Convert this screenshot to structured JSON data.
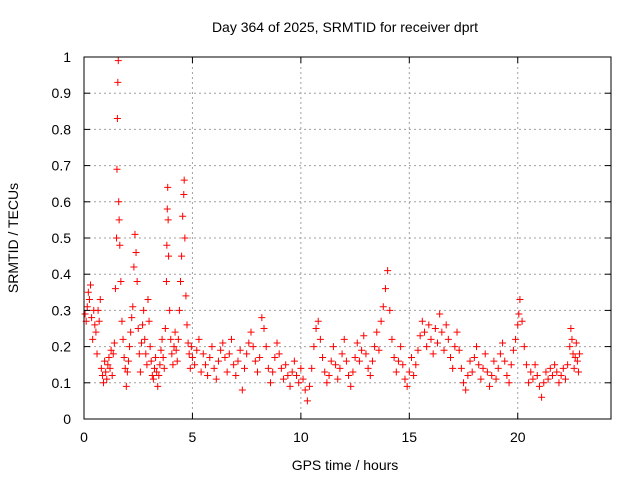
{
  "chart_data": {
    "type": "scatter",
    "title": "Day 364 of 2025, SRMTID for receiver dprt",
    "xlabel": "GPS time / hours",
    "ylabel": "SRMTID / TECUs",
    "xlim": [
      0,
      24.3
    ],
    "ylim": [
      0,
      1
    ],
    "xticks": [
      0,
      5,
      10,
      15,
      20
    ],
    "xtick_labels": [
      "0",
      "5",
      "10",
      "15",
      "20"
    ],
    "yticks": [
      0,
      0.1,
      0.2,
      0.3,
      0.4,
      0.5,
      0.6,
      0.7,
      0.8,
      0.9,
      1
    ],
    "ytick_labels": [
      "0",
      "0.1",
      "0.2",
      "0.3",
      "0.4",
      "0.5",
      "0.6",
      "0.7",
      "0.8",
      "0.9",
      "1"
    ],
    "grid": true,
    "marker": "+",
    "color": "#ff0000",
    "series": [
      {
        "name": "SRMTID",
        "points": [
          [
            0.05,
            0.29
          ],
          [
            0.1,
            0.27
          ],
          [
            0.15,
            0.31
          ],
          [
            0.2,
            0.35
          ],
          [
            0.25,
            0.33
          ],
          [
            0.3,
            0.37
          ],
          [
            0.35,
            0.28
          ],
          [
            0.4,
            0.22
          ],
          [
            0.45,
            0.3
          ],
          [
            0.5,
            0.26
          ],
          [
            0.55,
            0.24
          ],
          [
            0.6,
            0.18
          ],
          [
            0.65,
            0.3
          ],
          [
            0.7,
            0.27
          ],
          [
            0.75,
            0.33
          ],
          [
            0.8,
            0.14
          ],
          [
            0.85,
            0.12
          ],
          [
            0.9,
            0.1
          ],
          [
            0.95,
            0.16
          ],
          [
            1.0,
            0.13
          ],
          [
            1.05,
            0.11
          ],
          [
            1.1,
            0.15
          ],
          [
            1.15,
            0.17
          ],
          [
            1.2,
            0.14
          ],
          [
            1.25,
            0.19
          ],
          [
            1.3,
            0.12
          ],
          [
            1.35,
            0.18
          ],
          [
            1.4,
            0.21
          ],
          [
            1.45,
            0.36
          ],
          [
            1.5,
            0.5
          ],
          [
            1.52,
            0.69
          ],
          [
            1.54,
            0.83
          ],
          [
            1.56,
            0.93
          ],
          [
            1.58,
            0.99
          ],
          [
            1.6,
            0.6
          ],
          [
            1.62,
            0.55
          ],
          [
            1.65,
            0.48
          ],
          [
            1.7,
            0.38
          ],
          [
            1.75,
            0.27
          ],
          [
            1.8,
            0.22
          ],
          [
            1.85,
            0.17
          ],
          [
            1.9,
            0.14
          ],
          [
            1.95,
            0.09
          ],
          [
            2.0,
            0.13
          ],
          [
            2.05,
            0.16
          ],
          [
            2.1,
            0.2
          ],
          [
            2.15,
            0.24
          ],
          [
            2.2,
            0.28
          ],
          [
            2.25,
            0.31
          ],
          [
            2.3,
            0.42
          ],
          [
            2.35,
            0.51
          ],
          [
            2.4,
            0.46
          ],
          [
            2.45,
            0.38
          ],
          [
            2.5,
            0.25
          ],
          [
            2.55,
            0.18
          ],
          [
            2.6,
            0.13
          ],
          [
            2.65,
            0.21
          ],
          [
            2.7,
            0.26
          ],
          [
            2.75,
            0.3
          ],
          [
            2.8,
            0.22
          ],
          [
            2.85,
            0.18
          ],
          [
            2.9,
            0.15
          ],
          [
            2.95,
            0.33
          ],
          [
            3.0,
            0.27
          ],
          [
            3.05,
            0.2
          ],
          [
            3.1,
            0.16
          ],
          [
            3.15,
            0.12
          ],
          [
            3.2,
            0.11
          ],
          [
            3.25,
            0.14
          ],
          [
            3.3,
            0.17
          ],
          [
            3.35,
            0.13
          ],
          [
            3.4,
            0.09
          ],
          [
            3.45,
            0.12
          ],
          [
            3.5,
            0.15
          ],
          [
            3.55,
            0.19
          ],
          [
            3.6,
            0.22
          ],
          [
            3.65,
            0.17
          ],
          [
            3.7,
            0.14
          ],
          [
            3.75,
            0.25
          ],
          [
            3.8,
            0.38
          ],
          [
            3.82,
            0.48
          ],
          [
            3.84,
            0.58
          ],
          [
            3.86,
            0.64
          ],
          [
            3.88,
            0.55
          ],
          [
            3.9,
            0.45
          ],
          [
            3.95,
            0.3
          ],
          [
            4.0,
            0.22
          ],
          [
            4.05,
            0.18
          ],
          [
            4.1,
            0.15
          ],
          [
            4.15,
            0.2
          ],
          [
            4.2,
            0.24
          ],
          [
            4.25,
            0.19
          ],
          [
            4.3,
            0.16
          ],
          [
            4.35,
            0.22
          ],
          [
            4.4,
            0.3
          ],
          [
            4.45,
            0.38
          ],
          [
            4.5,
            0.45
          ],
          [
            4.55,
            0.56
          ],
          [
            4.6,
            0.62
          ],
          [
            4.62,
            0.66
          ],
          [
            4.65,
            0.5
          ],
          [
            4.7,
            0.34
          ],
          [
            4.75,
            0.26
          ],
          [
            4.8,
            0.21
          ],
          [
            4.85,
            0.18
          ],
          [
            4.9,
            0.14
          ],
          [
            4.95,
            0.2
          ],
          [
            5.0,
            0.17
          ],
          [
            5.1,
            0.15
          ],
          [
            5.2,
            0.19
          ],
          [
            5.3,
            0.22
          ],
          [
            5.4,
            0.13
          ],
          [
            5.5,
            0.18
          ],
          [
            5.6,
            0.15
          ],
          [
            5.7,
            0.12
          ],
          [
            5.8,
            0.17
          ],
          [
            5.9,
            0.2
          ],
          [
            6.0,
            0.14
          ],
          [
            6.1,
            0.11
          ],
          [
            6.2,
            0.16
          ],
          [
            6.3,
            0.19
          ],
          [
            6.4,
            0.21
          ],
          [
            6.5,
            0.17
          ],
          [
            6.6,
            0.13
          ],
          [
            6.7,
            0.18
          ],
          [
            6.8,
            0.22
          ],
          [
            6.9,
            0.15
          ],
          [
            7.0,
            0.12
          ],
          [
            7.1,
            0.16
          ],
          [
            7.2,
            0.19
          ],
          [
            7.3,
            0.08
          ],
          [
            7.4,
            0.14
          ],
          [
            7.5,
            0.18
          ],
          [
            7.6,
            0.21
          ],
          [
            7.7,
            0.24
          ],
          [
            7.8,
            0.2
          ],
          [
            7.9,
            0.16
          ],
          [
            8.0,
            0.13
          ],
          [
            8.1,
            0.17
          ],
          [
            8.2,
            0.28
          ],
          [
            8.3,
            0.25
          ],
          [
            8.4,
            0.2
          ],
          [
            8.5,
            0.14
          ],
          [
            8.6,
            0.1
          ],
          [
            8.7,
            0.13
          ],
          [
            8.8,
            0.17
          ],
          [
            8.9,
            0.21
          ],
          [
            9.0,
            0.18
          ],
          [
            9.1,
            0.14
          ],
          [
            9.2,
            0.11
          ],
          [
            9.3,
            0.15
          ],
          [
            9.4,
            0.12
          ],
          [
            9.5,
            0.09
          ],
          [
            9.6,
            0.13
          ],
          [
            9.7,
            0.16
          ],
          [
            9.8,
            0.12
          ],
          [
            9.9,
            0.1
          ],
          [
            10.0,
            0.14
          ],
          [
            10.1,
            0.11
          ],
          [
            10.2,
            0.08
          ],
          [
            10.3,
            0.05
          ],
          [
            10.4,
            0.09
          ],
          [
            10.5,
            0.14
          ],
          [
            10.6,
            0.2
          ],
          [
            10.7,
            0.25
          ],
          [
            10.8,
            0.27
          ],
          [
            10.9,
            0.22
          ],
          [
            11.0,
            0.17
          ],
          [
            11.1,
            0.13
          ],
          [
            11.2,
            0.1
          ],
          [
            11.3,
            0.12
          ],
          [
            11.4,
            0.16
          ],
          [
            11.5,
            0.2
          ],
          [
            11.6,
            0.15
          ],
          [
            11.7,
            0.11
          ],
          [
            11.8,
            0.14
          ],
          [
            11.9,
            0.18
          ],
          [
            12.0,
            0.22
          ],
          [
            12.1,
            0.16
          ],
          [
            12.2,
            0.12
          ],
          [
            12.3,
            0.09
          ],
          [
            12.4,
            0.13
          ],
          [
            12.5,
            0.17
          ],
          [
            12.6,
            0.21
          ],
          [
            12.7,
            0.16
          ],
          [
            12.8,
            0.19
          ],
          [
            12.9,
            0.23
          ],
          [
            13.0,
            0.18
          ],
          [
            13.1,
            0.14
          ],
          [
            13.2,
            0.12
          ],
          [
            13.3,
            0.16
          ],
          [
            13.4,
            0.2
          ],
          [
            13.5,
            0.24
          ],
          [
            13.6,
            0.19
          ],
          [
            13.7,
            0.27
          ],
          [
            13.8,
            0.31
          ],
          [
            13.9,
            0.36
          ],
          [
            14.0,
            0.41
          ],
          [
            14.1,
            0.3
          ],
          [
            14.2,
            0.22
          ],
          [
            14.3,
            0.17
          ],
          [
            14.4,
            0.13
          ],
          [
            14.5,
            0.16
          ],
          [
            14.6,
            0.2
          ],
          [
            14.7,
            0.15
          ],
          [
            14.8,
            0.11
          ],
          [
            14.9,
            0.09
          ],
          [
            15.0,
            0.13
          ],
          [
            15.1,
            0.17
          ],
          [
            15.2,
            0.12
          ],
          [
            15.3,
            0.15
          ],
          [
            15.4,
            0.19
          ],
          [
            15.5,
            0.23
          ],
          [
            15.6,
            0.27
          ],
          [
            15.7,
            0.24
          ],
          [
            15.8,
            0.2
          ],
          [
            15.9,
            0.26
          ],
          [
            16.0,
            0.22
          ],
          [
            16.1,
            0.18
          ],
          [
            16.2,
            0.25
          ],
          [
            16.3,
            0.21
          ],
          [
            16.4,
            0.29
          ],
          [
            16.5,
            0.24
          ],
          [
            16.6,
            0.19
          ],
          [
            16.7,
            0.26
          ],
          [
            16.8,
            0.22
          ],
          [
            16.9,
            0.17
          ],
          [
            17.0,
            0.14
          ],
          [
            17.1,
            0.2
          ],
          [
            17.2,
            0.24
          ],
          [
            17.3,
            0.19
          ],
          [
            17.4,
            0.14
          ],
          [
            17.5,
            0.1
          ],
          [
            17.6,
            0.08
          ],
          [
            17.7,
            0.12
          ],
          [
            17.8,
            0.16
          ],
          [
            17.9,
            0.13
          ],
          [
            18.0,
            0.17
          ],
          [
            18.1,
            0.2
          ],
          [
            18.2,
            0.15
          ],
          [
            18.3,
            0.11
          ],
          [
            18.4,
            0.14
          ],
          [
            18.5,
            0.18
          ],
          [
            18.6,
            0.13
          ],
          [
            18.7,
            0.09
          ],
          [
            18.8,
            0.12
          ],
          [
            18.9,
            0.16
          ],
          [
            19.0,
            0.11
          ],
          [
            19.1,
            0.14
          ],
          [
            19.2,
            0.18
          ],
          [
            19.3,
            0.21
          ],
          [
            19.4,
            0.16
          ],
          [
            19.5,
            0.12
          ],
          [
            19.6,
            0.1
          ],
          [
            19.7,
            0.15
          ],
          [
            19.8,
            0.19
          ],
          [
            19.9,
            0.22
          ],
          [
            20.0,
            0.26
          ],
          [
            20.05,
            0.29
          ],
          [
            20.1,
            0.33
          ],
          [
            20.2,
            0.27
          ],
          [
            20.3,
            0.2
          ],
          [
            20.4,
            0.15
          ],
          [
            20.5,
            0.1
          ],
          [
            20.6,
            0.13
          ],
          [
            20.7,
            0.11
          ],
          [
            20.8,
            0.15
          ],
          [
            20.9,
            0.12
          ],
          [
            21.0,
            0.09
          ],
          [
            21.1,
            0.06
          ],
          [
            21.2,
            0.1
          ],
          [
            21.3,
            0.13
          ],
          [
            21.4,
            0.11
          ],
          [
            21.5,
            0.14
          ],
          [
            21.6,
            0.12
          ],
          [
            21.7,
            0.15
          ],
          [
            21.8,
            0.13
          ],
          [
            21.9,
            0.1
          ],
          [
            22.0,
            0.12
          ],
          [
            22.1,
            0.14
          ],
          [
            22.2,
            0.11
          ],
          [
            22.3,
            0.15
          ],
          [
            22.4,
            0.2
          ],
          [
            22.45,
            0.25
          ],
          [
            22.5,
            0.22
          ],
          [
            22.55,
            0.18
          ],
          [
            22.6,
            0.14
          ],
          [
            22.65,
            0.17
          ],
          [
            22.7,
            0.21
          ],
          [
            22.75,
            0.16
          ],
          [
            22.8,
            0.13
          ],
          [
            22.85,
            0.18
          ]
        ]
      }
    ]
  }
}
